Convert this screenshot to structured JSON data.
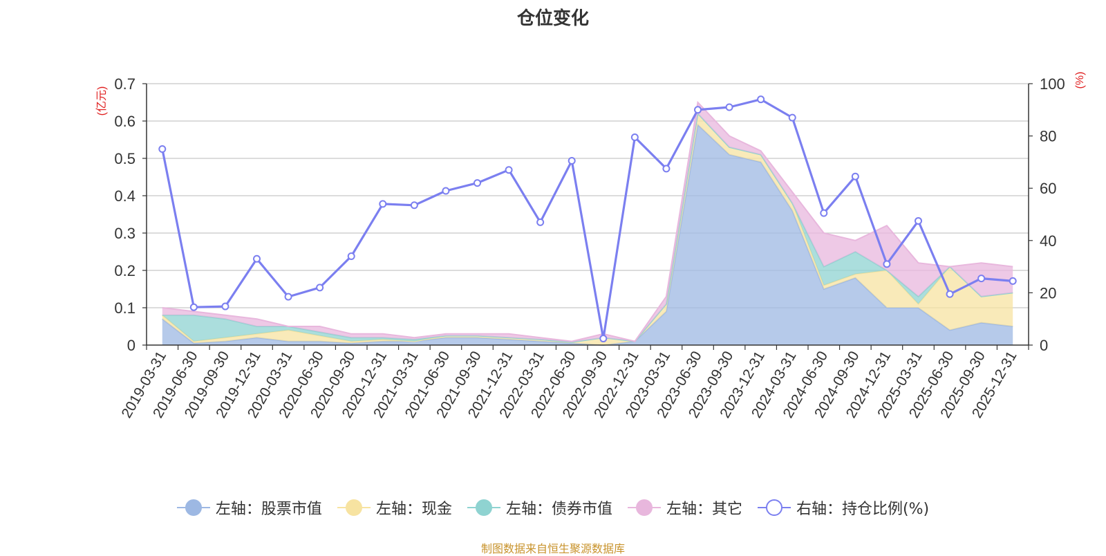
{
  "title": "仓位变化",
  "source_note": "制图数据来自恒生聚源数据库",
  "chart_data": {
    "type": "area",
    "title": "仓位变化",
    "categories": [
      "2019-03-31",
      "2019-06-30",
      "2019-09-30",
      "2019-12-31",
      "2020-03-31",
      "2020-06-30",
      "2020-09-30",
      "2020-12-31",
      "2021-03-31",
      "2021-06-30",
      "2021-09-30",
      "2021-12-31",
      "2022-03-31",
      "2022-06-30",
      "2022-09-30",
      "2022-12-31",
      "2023-03-31",
      "2023-06-30",
      "2023-09-30",
      "2023-12-31",
      "2024-03-31",
      "2024-06-30",
      "2024-09-30",
      "2024-12-31",
      "2025-03-31",
      "2025-06-30",
      "2025-09-30",
      "2025-12-31"
    ],
    "left_axis": {
      "unit_label": "(亿元)",
      "ylim": [
        0,
        0.7
      ],
      "ticks": [
        "0",
        "0.1",
        "0.2",
        "0.3",
        "0.4",
        "0.5",
        "0.6",
        "0.7"
      ],
      "tick_values": [
        0,
        0.1,
        0.2,
        0.3,
        0.4,
        0.5,
        0.6,
        0.7
      ]
    },
    "right_axis": {
      "unit_label": "(%)",
      "ylim": [
        0,
        100
      ],
      "ticks": [
        "0",
        "20",
        "40",
        "60",
        "80",
        "100"
      ],
      "tick_values": [
        0,
        20,
        40,
        60,
        80,
        100
      ]
    },
    "grid": true,
    "legend_position": "bottom",
    "stacked_series": [
      {
        "name": "左轴：股票市值",
        "color": "#9db8e3",
        "values": [
          0.07,
          0.005,
          0.01,
          0.02,
          0.01,
          0.01,
          0.005,
          0.01,
          0.01,
          0.02,
          0.02,
          0.015,
          0.01,
          0.005,
          0.0,
          0.01,
          0.09,
          0.59,
          0.51,
          0.49,
          0.36,
          0.15,
          0.18,
          0.1,
          0.1,
          0.04,
          0.06,
          0.05
        ]
      },
      {
        "name": "左轴：现金",
        "color": "#f7e3a1",
        "values": [
          0.01,
          0.005,
          0.01,
          0.01,
          0.03,
          0.015,
          0.005,
          0.005,
          0.0,
          0.005,
          0.005,
          0.005,
          0.005,
          0.003,
          0.02,
          0.0,
          0.02,
          0.03,
          0.02,
          0.02,
          0.02,
          0.01,
          0.01,
          0.1,
          0.01,
          0.17,
          0.07,
          0.09
        ]
      },
      {
        "name": "左轴：债券市值",
        "color": "#8fd3d1",
        "values": [
          0.0,
          0.07,
          0.05,
          0.02,
          0.01,
          0.01,
          0.01,
          0.005,
          0.005,
          0.0,
          0.0,
          0.0,
          0.0,
          0.0,
          0.0,
          0.0,
          0.0,
          0.0,
          0.0,
          0.0,
          0.0,
          0.05,
          0.06,
          0.0,
          0.02,
          0.0,
          0.0,
          0.0
        ]
      },
      {
        "name": "左轴：其它",
        "color": "#e8b7dd",
        "values": [
          0.02,
          0.01,
          0.01,
          0.02,
          0.0,
          0.015,
          0.01,
          0.01,
          0.005,
          0.005,
          0.005,
          0.01,
          0.005,
          0.002,
          0.01,
          0.0,
          0.02,
          0.03,
          0.03,
          0.01,
          0.03,
          0.09,
          0.03,
          0.12,
          0.09,
          0.0,
          0.09,
          0.07
        ]
      }
    ],
    "line_series": {
      "name": "右轴：持仓比例(%)",
      "color": "#7b7ff0",
      "values": [
        75,
        14.5,
        14.8,
        33,
        18.5,
        22,
        34,
        54,
        53.5,
        59,
        62,
        67,
        47,
        70.5,
        2.5,
        79.5,
        67.5,
        90,
        91,
        94,
        87,
        50.5,
        64.5,
        31,
        47.5,
        19.5,
        25.5,
        24.5
      ]
    }
  }
}
